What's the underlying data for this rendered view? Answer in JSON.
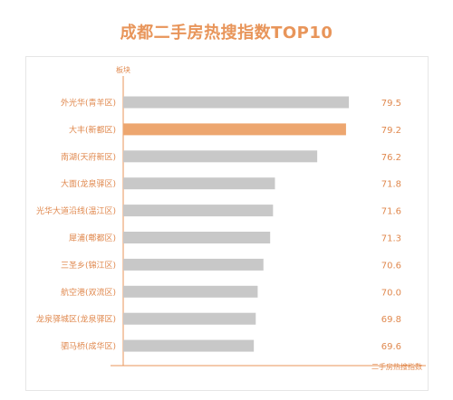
{
  "chart_data": {
    "type": "bar",
    "orientation": "horizontal",
    "title": "成都二手房热搜指数TOP10",
    "ylabel": "板块",
    "xlabel": "二手房热搜指数",
    "categories": [
      "外光华(青羊区)",
      "大丰(新都区)",
      "南湖(天府新区)",
      "大面(龙泉驿区)",
      "光华大道沿线(温江区)",
      "犀浦(郫都区)",
      "三圣乡(锦江区)",
      "航空港(双流区)",
      "龙泉驿城区(龙泉驿区)",
      "驷马桥(成华区)"
    ],
    "values": [
      79.5,
      79.2,
      76.2,
      71.8,
      71.6,
      71.3,
      70.6,
      70.0,
      69.8,
      69.6
    ],
    "value_labels": [
      "79.5",
      "79.2",
      "76.2",
      "71.8",
      "71.6",
      "71.3",
      "70.6",
      "70.0",
      "69.8",
      "69.6"
    ],
    "highlight_index": 1,
    "colors": {
      "bar": "#c8c8c8",
      "highlight": "#eda66f",
      "axis": "#e8955a",
      "title": "#e8955a",
      "text": "#e0894f"
    }
  }
}
